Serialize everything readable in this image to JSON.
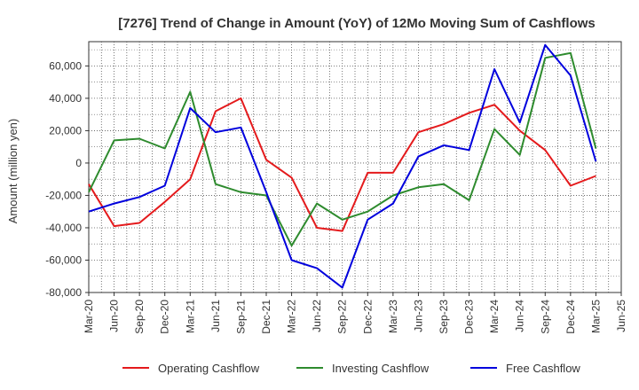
{
  "chart_data": {
    "type": "line",
    "title": "[7276]  Trend of Change in Amount (YoY) of 12Mo Moving Sum of Cashflows",
    "xlabel": "",
    "ylabel": "Amount (million yen)",
    "ylim": [
      -80000,
      75000
    ],
    "yticks": [
      60000,
      40000,
      20000,
      0,
      -20000,
      -40000,
      -60000,
      -80000
    ],
    "ytick_labels": [
      "60,000",
      "40,000",
      "20,000",
      "0",
      "-20,000",
      "-40,000",
      "-60,000",
      "-80,000"
    ],
    "categories": [
      "Mar-20",
      "Jun-20",
      "Sep-20",
      "Dec-20",
      "Mar-21",
      "Jun-21",
      "Sep-21",
      "Dec-21",
      "Mar-22",
      "Jun-22",
      "Sep-22",
      "Dec-22",
      "Mar-23",
      "Jun-23",
      "Sep-23",
      "Dec-23",
      "Mar-24",
      "Jun-24",
      "Sep-24",
      "Dec-24",
      "Mar-25",
      "Jun-25"
    ],
    "grid": true,
    "legend_position": "bottom",
    "series": [
      {
        "name": "Operating Cashflow",
        "color": "#e41a1c",
        "values": [
          -13000,
          -39000,
          -37000,
          -24000,
          -10000,
          32000,
          40000,
          2000,
          -9000,
          -40000,
          -42000,
          -6000,
          -6000,
          19000,
          24000,
          31000,
          36000,
          20000,
          8000,
          -14000,
          -8000,
          null
        ]
      },
      {
        "name": "Investing Cashflow",
        "color": "#2e8b2e",
        "values": [
          -18000,
          14000,
          15000,
          9000,
          44000,
          -13000,
          -18000,
          -20000,
          -51000,
          -25000,
          -35000,
          -30000,
          -20000,
          -15000,
          -13000,
          -23000,
          21000,
          5000,
          65000,
          68000,
          9000,
          null
        ]
      },
      {
        "name": "Free Cashflow",
        "color": "#0000dd",
        "values": [
          -30000,
          -25000,
          -21000,
          -14000,
          34000,
          19000,
          22000,
          -18000,
          -60000,
          -65000,
          -77000,
          -35000,
          -25000,
          4000,
          11000,
          8000,
          58000,
          25000,
          73000,
          54000,
          1000,
          null
        ]
      }
    ]
  }
}
